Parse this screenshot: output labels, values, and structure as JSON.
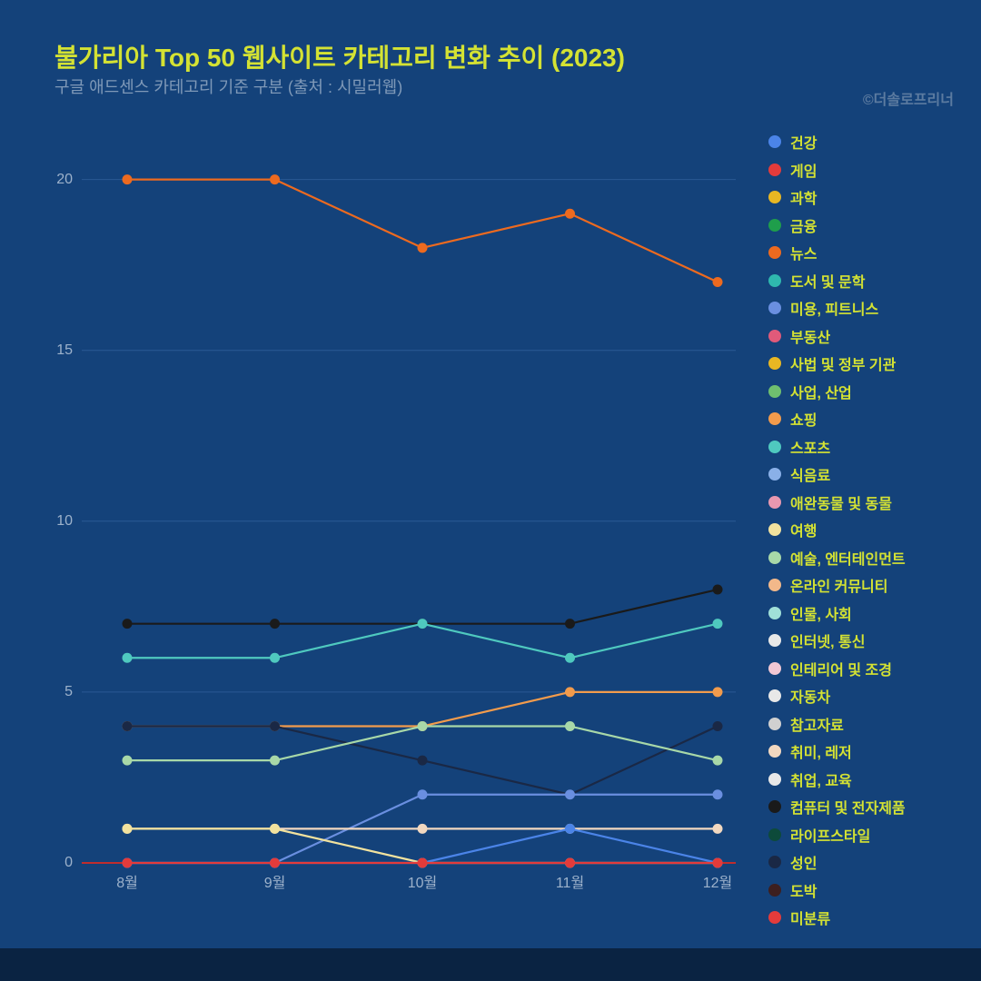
{
  "title": "불가리아 Top 50 웹사이트 카테고리 변화 추이 (2023)",
  "subtitle": "구글 애드센스 카테고리 기준 구분 (출처 : 시밀러웹)",
  "copyright": "©더솔로프리너",
  "chart": {
    "type": "line",
    "background_color": "#14427a",
    "grid_color": "#2a5a94",
    "baseline_color": "#c02d2d",
    "text_color": "#9db2cb",
    "title_color": "#d4e233",
    "legend_label_color": "#d4e233",
    "xlabels": [
      "8월",
      "9월",
      "10월",
      "11월",
      "12월"
    ],
    "ylim": [
      0,
      21
    ],
    "yticks": [
      0,
      5,
      10,
      15,
      20
    ],
    "line_width": 2.2,
    "marker_radius": 5.5,
    "legend": [
      {
        "label": "건강",
        "color": "#4b84e8"
      },
      {
        "label": "게임",
        "color": "#e33b3b"
      },
      {
        "label": "과학",
        "color": "#e8b723"
      },
      {
        "label": "금융",
        "color": "#1f9e4b"
      },
      {
        "label": "뉴스",
        "color": "#ed6a1f"
      },
      {
        "label": "도서 및 문학",
        "color": "#2fb8ae"
      },
      {
        "label": "미용, 피트니스",
        "color": "#6a8fe0"
      },
      {
        "label": "부동산",
        "color": "#e05a7a"
      },
      {
        "label": "사법 및 정부 기관",
        "color": "#e8b723"
      },
      {
        "label": "사업, 산업",
        "color": "#6fbf6f"
      },
      {
        "label": "쇼핑",
        "color": "#f29b4c"
      },
      {
        "label": "스포츠",
        "color": "#4fc9bf"
      },
      {
        "label": "식음료",
        "color": "#8ab0e8"
      },
      {
        "label": "애완동물 및 동물",
        "color": "#e898b0"
      },
      {
        "label": "여행",
        "color": "#f2e29e"
      },
      {
        "label": "예술, 엔터테인먼트",
        "color": "#a8d8a8"
      },
      {
        "label": "온라인 커뮤니티",
        "color": "#f2b88a"
      },
      {
        "label": "인물, 사회",
        "color": "#a0e0d8"
      },
      {
        "label": "인터넷, 통신",
        "color": "#e8e8e8"
      },
      {
        "label": "인테리어 및 조경",
        "color": "#f2c8d4"
      },
      {
        "label": "자동차",
        "color": "#e8e8e8"
      },
      {
        "label": "참고자료",
        "color": "#d0d0d0"
      },
      {
        "label": "취미, 레저",
        "color": "#f2d8c0"
      },
      {
        "label": "취업, 교육",
        "color": "#e8e8e8"
      },
      {
        "label": "컴퓨터 및 전자제품",
        "color": "#1a1a1a"
      },
      {
        "label": "라이프스타일",
        "color": "#0d4a3a"
      },
      {
        "label": "성인",
        "color": "#1a2845"
      },
      {
        "label": "도박",
        "color": "#3d1f1f"
      },
      {
        "label": "미분류",
        "color": "#e33b3b"
      }
    ],
    "series": [
      {
        "label": "뉴스",
        "color": "#ed6a1f",
        "values": [
          20,
          20,
          18,
          19,
          17
        ]
      },
      {
        "label": "컴퓨터 및 전자제품",
        "color": "#1a1a1a",
        "values": [
          7,
          7,
          7,
          7,
          8
        ]
      },
      {
        "label": "스포츠",
        "color": "#4fc9bf",
        "values": [
          6,
          6,
          7,
          6,
          7
        ]
      },
      {
        "label": "쇼핑",
        "color": "#f29b4c",
        "values": [
          4,
          4,
          4,
          5,
          5
        ]
      },
      {
        "label": "성인",
        "color": "#1a2845",
        "values": [
          4,
          4,
          3,
          2,
          4
        ]
      },
      {
        "label": "예술, 엔터테인먼트",
        "color": "#a8d8a8",
        "values": [
          3,
          3,
          4,
          4,
          3
        ]
      },
      {
        "label": "미용, 피트니스",
        "color": "#6a8fe0",
        "values": [
          0,
          0,
          2,
          2,
          2
        ]
      },
      {
        "label": "취미, 레저",
        "color": "#f2d8c0",
        "values": [
          1,
          1,
          1,
          1,
          1
        ]
      },
      {
        "label": "여행",
        "color": "#f2e29e",
        "values": [
          1,
          1,
          0,
          0,
          0
        ]
      },
      {
        "label": "건강",
        "color": "#4b84e8",
        "values": [
          0,
          0,
          0,
          1,
          0
        ]
      },
      {
        "label": "미분류",
        "color": "#e33b3b",
        "values": [
          0,
          0,
          0,
          0,
          0
        ]
      }
    ]
  }
}
